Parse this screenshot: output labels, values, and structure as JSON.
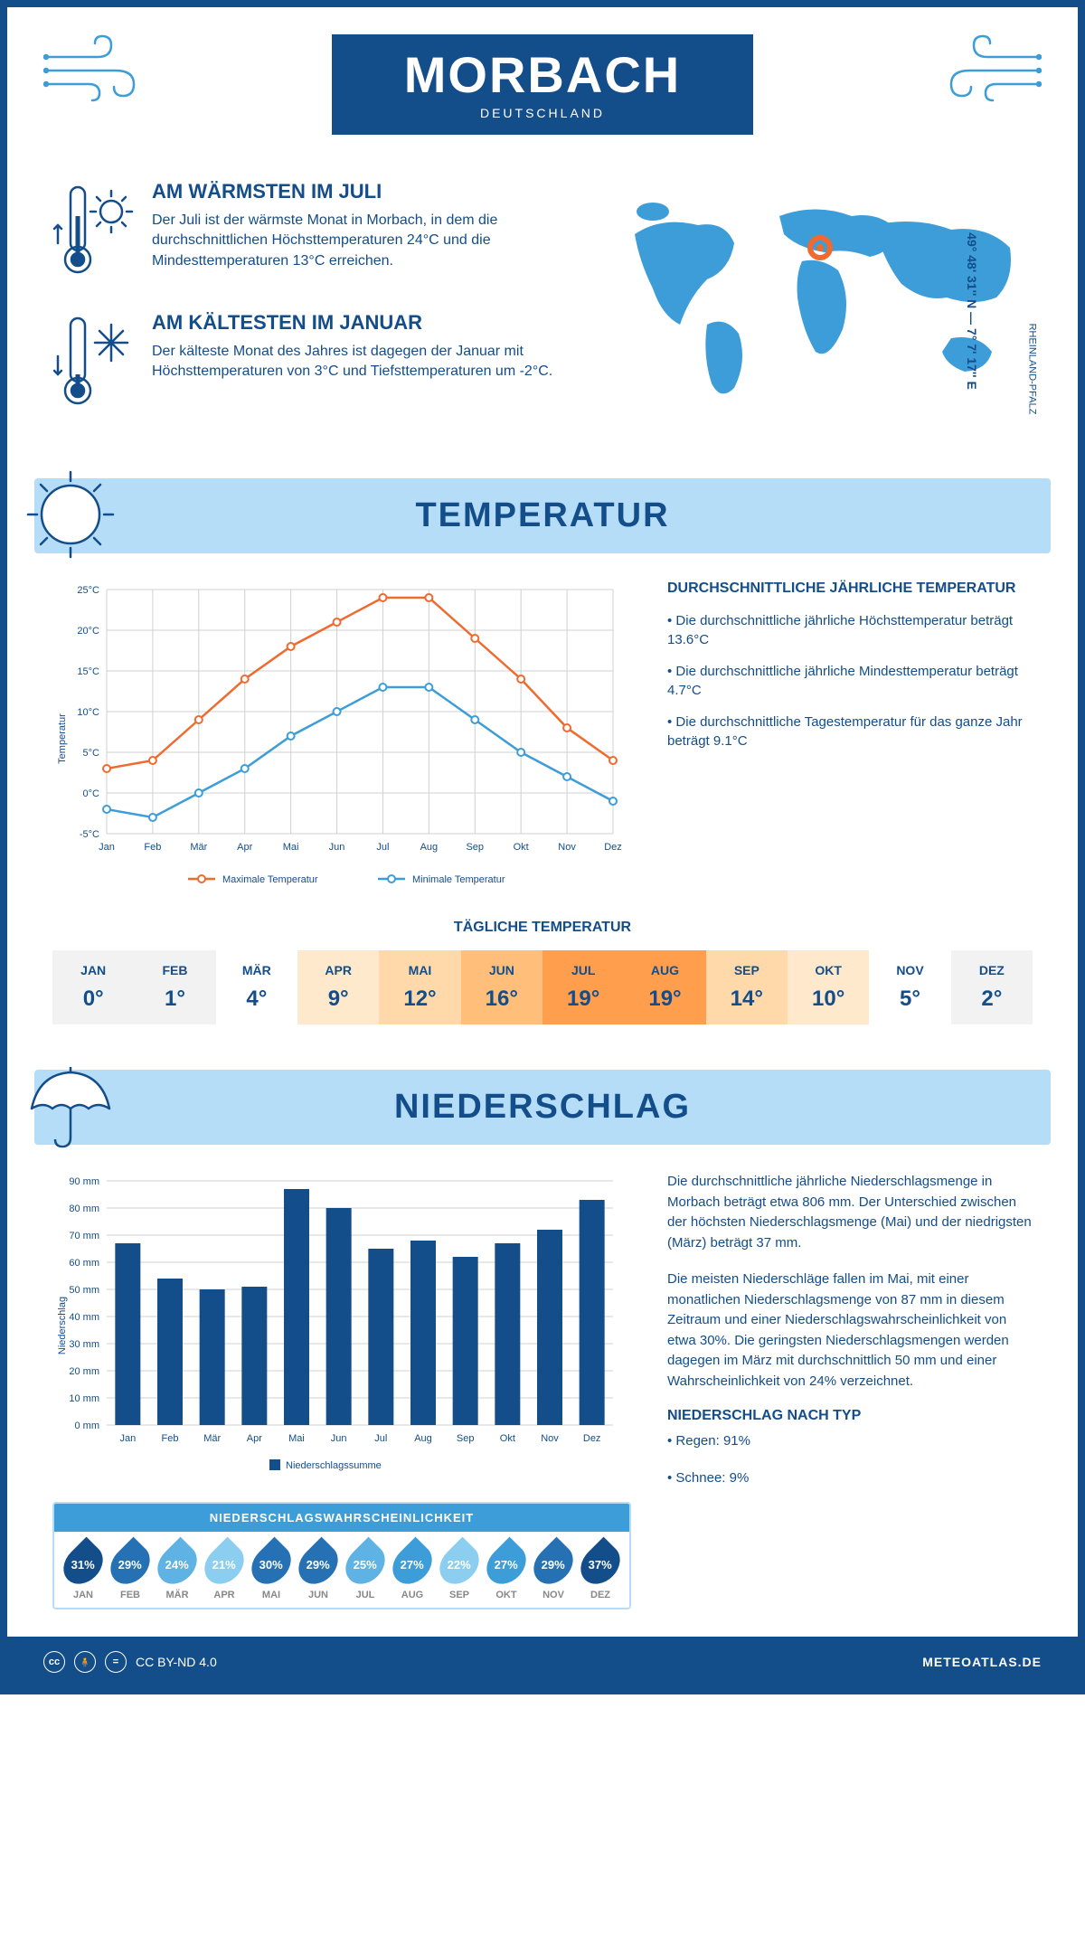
{
  "header": {
    "city": "MORBACH",
    "country": "DEUTSCHLAND",
    "coords": "49° 48' 31'' N — 7° 7' 17'' E",
    "region": "RHEINLAND-PFALZ"
  },
  "intro": {
    "warm": {
      "title": "AM WÄRMSTEN IM JULI",
      "text": "Der Juli ist der wärmste Monat in Morbach, in dem die durchschnittlichen Höchsttemperaturen 24°C und die Mindesttemperaturen 13°C erreichen."
    },
    "cold": {
      "title": "AM KÄLTESTEN IM JANUAR",
      "text": "Der kälteste Monat des Jahres ist dagegen der Januar mit Höchsttemperaturen von 3°C und Tiefsttemperaturen um -2°C."
    }
  },
  "temp_section": {
    "title": "TEMPERATUR"
  },
  "temp_chart": {
    "type": "line",
    "months": [
      "Jan",
      "Feb",
      "Mär",
      "Apr",
      "Mai",
      "Jun",
      "Jul",
      "Aug",
      "Sep",
      "Okt",
      "Nov",
      "Dez"
    ],
    "max": [
      3,
      4,
      9,
      14,
      18,
      21,
      24,
      24,
      19,
      14,
      8,
      4
    ],
    "min": [
      -2,
      -3,
      0,
      3,
      7,
      10,
      13,
      13,
      9,
      5,
      2,
      -1
    ],
    "max_color": "#ef6a2f",
    "min_color": "#3c9dd8",
    "ylim": [
      -5,
      25
    ],
    "ytick_step": 5,
    "ylabel": "Temperatur",
    "legend_max": "Maximale Temperatur",
    "legend_min": "Minimale Temperatur",
    "grid_color": "#d0d0d0",
    "axis_color": "#134d8a"
  },
  "temp_notes": {
    "title": "DURCHSCHNITTLICHE JÄHRLICHE TEMPERATUR",
    "b1": "• Die durchschnittliche jährliche Höchsttemperatur beträgt 13.6°C",
    "b2": "• Die durchschnittliche jährliche Mindesttemperatur beträgt 4.7°C",
    "b3": "• Die durchschnittliche Tagestemperatur für das ganze Jahr beträgt 9.1°C"
  },
  "daily": {
    "title": "TÄGLICHE TEMPERATUR",
    "months": [
      "JAN",
      "FEB",
      "MÄR",
      "APR",
      "MAI",
      "JUN",
      "JUL",
      "AUG",
      "SEP",
      "OKT",
      "NOV",
      "DEZ"
    ],
    "values": [
      "0°",
      "1°",
      "4°",
      "9°",
      "12°",
      "16°",
      "19°",
      "19°",
      "14°",
      "10°",
      "5°",
      "2°"
    ],
    "colors": [
      "#f2f2f2",
      "#f2f2f2",
      "#ffffff",
      "#ffe9cc",
      "#ffd9aa",
      "#ffbf7b",
      "#ff9e4d",
      "#ff9e4d",
      "#ffd9aa",
      "#ffe9cc",
      "#ffffff",
      "#f2f2f2"
    ]
  },
  "precip_section": {
    "title": "NIEDERSCHLAG"
  },
  "precip_chart": {
    "type": "bar",
    "months": [
      "Jan",
      "Feb",
      "Mär",
      "Apr",
      "Mai",
      "Jun",
      "Jul",
      "Aug",
      "Sep",
      "Okt",
      "Nov",
      "Dez"
    ],
    "values": [
      67,
      54,
      50,
      51,
      87,
      80,
      65,
      68,
      62,
      67,
      72,
      83
    ],
    "ylim": [
      0,
      90
    ],
    "ytick_step": 10,
    "bar_color": "#134d8a",
    "ylabel": "Niederschlag",
    "legend": "Niederschlagssumme",
    "grid_color": "#d0d0d0",
    "axis_color": "#134d8a"
  },
  "precip_text": {
    "p1": "Die durchschnittliche jährliche Niederschlagsmenge in Morbach beträgt etwa 806 mm. Der Unterschied zwischen der höchsten Niederschlagsmenge (Mai) und der niedrigsten (März) beträgt 37 mm.",
    "p2": "Die meisten Niederschläge fallen im Mai, mit einer monatlichen Niederschlagsmenge von 87 mm in diesem Zeitraum und einer Niederschlagswahrscheinlichkeit von etwa 30%. Die geringsten Niederschlagsmengen werden dagegen im März mit durchschnittlich 50 mm und einer Wahrscheinlichkeit von 24% verzeichnet.",
    "type_title": "NIEDERSCHLAG NACH TYP",
    "type_rain": "• Regen: 91%",
    "type_snow": "• Schnee: 9%"
  },
  "prob": {
    "title": "NIEDERSCHLAGSWAHRSCHEINLICHKEIT",
    "months": [
      "JAN",
      "FEB",
      "MÄR",
      "APR",
      "MAI",
      "JUN",
      "JUL",
      "AUG",
      "SEP",
      "OKT",
      "NOV",
      "DEZ"
    ],
    "values": [
      "31%",
      "29%",
      "24%",
      "21%",
      "30%",
      "29%",
      "25%",
      "27%",
      "22%",
      "27%",
      "29%",
      "37%"
    ],
    "colors": [
      "#134d8a",
      "#2671b3",
      "#5fb3e4",
      "#8bcef0",
      "#2671b3",
      "#2671b3",
      "#5fb3e4",
      "#3c9dd8",
      "#8bcef0",
      "#3c9dd8",
      "#2671b3",
      "#134d8a"
    ]
  },
  "footer": {
    "license": "CC BY-ND 4.0",
    "site": "METEOATLAS.DE"
  }
}
